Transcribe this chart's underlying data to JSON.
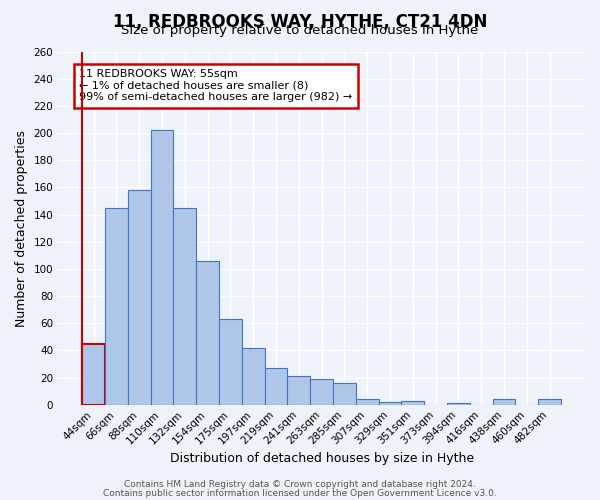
{
  "title": "11, REDBROOKS WAY, HYTHE, CT21 4DN",
  "subtitle": "Size of property relative to detached houses in Hythe",
  "xlabel": "Distribution of detached houses by size in Hythe",
  "ylabel": "Number of detached properties",
  "bin_labels": [
    "44sqm",
    "66sqm",
    "88sqm",
    "110sqm",
    "132sqm",
    "154sqm",
    "175sqm",
    "197sqm",
    "219sqm",
    "241sqm",
    "263sqm",
    "285sqm",
    "307sqm",
    "329sqm",
    "351sqm",
    "373sqm",
    "394sqm",
    "416sqm",
    "438sqm",
    "460sqm",
    "482sqm"
  ],
  "bar_heights": [
    45,
    145,
    158,
    202,
    145,
    106,
    63,
    42,
    27,
    21,
    19,
    16,
    4,
    2,
    3,
    0,
    1,
    0,
    4,
    0,
    4
  ],
  "bar_color": "#aec6e8",
  "bar_edge_color": "#4472c4",
  "highlight_color": "#cc0000",
  "ylim": [
    0,
    260
  ],
  "yticks": [
    0,
    20,
    40,
    60,
    80,
    100,
    120,
    140,
    160,
    180,
    200,
    220,
    240,
    260
  ],
  "annotation_title": "11 REDBROOKS WAY: 55sqm",
  "annotation_line1": "← 1% of detached houses are smaller (8)",
  "annotation_line2": "99% of semi-detached houses are larger (982) →",
  "annotation_box_color": "#cc0000",
  "footer_line1": "Contains HM Land Registry data © Crown copyright and database right 2024.",
  "footer_line2": "Contains public sector information licensed under the Open Government Licence v3.0.",
  "background_color": "#eef2f9",
  "grid_color": "#ffffff",
  "title_fontsize": 12,
  "subtitle_fontsize": 9.5,
  "axis_label_fontsize": 9,
  "tick_fontsize": 7.5,
  "footer_fontsize": 6.5
}
